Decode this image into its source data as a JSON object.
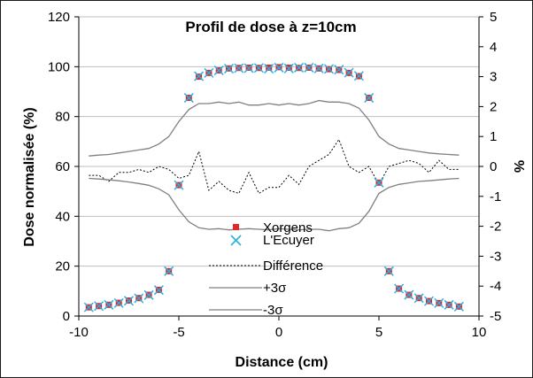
{
  "chart_data": {
    "type": "scatter",
    "title": "Profil de dose à z=10cm",
    "xlabel": "Distance (cm)",
    "ylabel": "Dose normalisée (%)",
    "y2label": "%",
    "xlim": [
      -10,
      10
    ],
    "ylim": [
      0,
      120
    ],
    "y2lim": [
      -5,
      5
    ],
    "x_ticks": [
      "-10",
      "-5",
      "0",
      "5",
      "10"
    ],
    "y_ticks": [
      "0",
      "20",
      "40",
      "60",
      "80",
      "100",
      "120"
    ],
    "y2_ticks": [
      "-5",
      "-4",
      "-3",
      "-2",
      "-1",
      "0",
      "1",
      "2",
      "3",
      "4",
      "5"
    ],
    "grid": "horizontal",
    "legend_position": "center",
    "legend": [
      "Xorgens",
      "L'Ecuyer",
      "Différence",
      "+3σ",
      "-3σ"
    ],
    "series": [
      {
        "name": "Xorgens",
        "axis": "left",
        "marker": "square",
        "color": "#e3262a",
        "x": [
          -9.5,
          -9,
          -8.5,
          -8,
          -7.5,
          -7,
          -6.5,
          -6,
          -5.5,
          -5,
          -4.5,
          -4,
          -3.5,
          -3,
          -2.5,
          -2,
          -1.5,
          -1,
          -0.5,
          0,
          0.5,
          1,
          1.5,
          2,
          2.5,
          3,
          3.5,
          4,
          4.5,
          5,
          5.5,
          6,
          6.5,
          7,
          7.5,
          8,
          8.5,
          9
        ],
        "y": [
          3.5,
          4,
          4.5,
          5.3,
          6.2,
          7.2,
          8.5,
          10.5,
          18,
          52.5,
          87.5,
          96,
          97.5,
          98.5,
          99.3,
          99.5,
          99.6,
          99.5,
          99.6,
          99.8,
          99.6,
          99.5,
          99.6,
          99.3,
          99,
          98.7,
          97.5,
          96.2,
          87.5,
          53.5,
          18,
          11,
          8.5,
          7.2,
          6,
          5.2,
          4.5,
          3.8
        ]
      },
      {
        "name": "L'Ecuyer",
        "axis": "left",
        "marker": "x",
        "color": "#2ab0e0",
        "x": [
          -9.5,
          -9,
          -8.5,
          -8,
          -7.5,
          -7,
          -6.5,
          -6,
          -5.5,
          -5,
          -4.5,
          -4,
          -3.5,
          -3,
          -2.5,
          -2,
          -1.5,
          -1,
          -0.5,
          0,
          0.5,
          1,
          1.5,
          2,
          2.5,
          3,
          3.5,
          4,
          4.5,
          5,
          5.5,
          6,
          6.5,
          7,
          7.5,
          8,
          8.5,
          9
        ],
        "y": [
          3.5,
          4,
          4.5,
          5.2,
          6.1,
          7.1,
          8.4,
          10.4,
          18,
          52.5,
          87.5,
          96.2,
          97.5,
          98.5,
          99.2,
          99.4,
          99.4,
          99.5,
          99.2,
          99.6,
          99.3,
          99.6,
          99.6,
          99.3,
          99.1,
          98.8,
          97.6,
          96.3,
          87.5,
          53.5,
          18,
          11,
          8.5,
          7.2,
          6,
          5.2,
          4.5,
          3.8
        ]
      },
      {
        "name": "Différence",
        "axis": "right",
        "line": "dotted",
        "color": "#000000",
        "x": [
          -9.5,
          -9,
          -8.5,
          -8,
          -7.5,
          -7,
          -6.5,
          -6,
          -5.5,
          -5,
          -4.5,
          -4,
          -3.5,
          -3,
          -2.5,
          -2,
          -1.5,
          -1,
          -0.5,
          0,
          0.5,
          1,
          1.5,
          2,
          2.5,
          3,
          3.5,
          4,
          4.5,
          5,
          5.5,
          6,
          6.5,
          7,
          7.5,
          8,
          8.5,
          9
        ],
        "y": [
          -0.3,
          -0.3,
          -0.5,
          -0.2,
          -0.2,
          -0.1,
          -0.2,
          0.0,
          -0.1,
          -0.4,
          -0.3,
          0.5,
          -0.8,
          -0.5,
          -0.8,
          -0.9,
          -0.2,
          -0.9,
          -0.7,
          -0.7,
          -0.3,
          -0.6,
          0.0,
          0.2,
          0.4,
          0.9,
          0.0,
          -0.2,
          0.0,
          -0.6,
          0.0,
          0.1,
          0.2,
          0.1,
          -0.2,
          0.2,
          -0.1,
          -0.1
        ]
      },
      {
        "name": "+3σ",
        "axis": "right",
        "line": "solid",
        "color": "#808080",
        "x": [
          -9.5,
          -9,
          -8.5,
          -8,
          -7.5,
          -7,
          -6.5,
          -6,
          -5.5,
          -5,
          -4.5,
          -4,
          -3.5,
          -3,
          -2.5,
          -2,
          -1.5,
          -1,
          -0.5,
          0,
          0.5,
          1,
          1.5,
          2,
          2.5,
          3,
          3.5,
          4,
          4.5,
          5,
          5.5,
          6,
          6.5,
          7,
          7.5,
          8,
          8.5,
          9
        ],
        "y": [
          0.35,
          0.38,
          0.4,
          0.45,
          0.5,
          0.55,
          0.6,
          0.75,
          1.0,
          1.5,
          1.9,
          2.1,
          2.1,
          2.15,
          2.1,
          2.15,
          2.05,
          2.05,
          2.1,
          2.05,
          2.1,
          2.05,
          2.1,
          2.2,
          2.15,
          2.15,
          2.1,
          1.95,
          1.55,
          1.0,
          0.75,
          0.6,
          0.55,
          0.5,
          0.45,
          0.42,
          0.4,
          0.38
        ]
      },
      {
        "name": "-3σ",
        "axis": "right",
        "line": "solid",
        "color": "#808080",
        "x": [
          -9.5,
          -9,
          -8.5,
          -8,
          -7.5,
          -7,
          -6.5,
          -6,
          -5.5,
          -5,
          -4.5,
          -4,
          -3.5,
          -3,
          -2.5,
          -2,
          -1.5,
          -1,
          -0.5,
          0,
          0.5,
          1,
          1.5,
          2,
          2.5,
          3,
          3.5,
          4,
          4.5,
          5,
          5.5,
          6,
          6.5,
          7,
          7.5,
          8,
          8.5,
          9
        ],
        "y": [
          -0.4,
          -0.42,
          -0.45,
          -0.48,
          -0.52,
          -0.57,
          -0.63,
          -0.75,
          -0.95,
          -1.45,
          -1.85,
          -2.05,
          -2.1,
          -2.08,
          -2.12,
          -2.1,
          -2.08,
          -2.1,
          -2.12,
          -2.08,
          -2.1,
          -2.12,
          -2.1,
          -2.1,
          -2.15,
          -2.08,
          -2.05,
          -1.9,
          -1.5,
          -0.9,
          -0.7,
          -0.6,
          -0.55,
          -0.5,
          -0.48,
          -0.45,
          -0.42,
          -0.4
        ]
      }
    ]
  }
}
